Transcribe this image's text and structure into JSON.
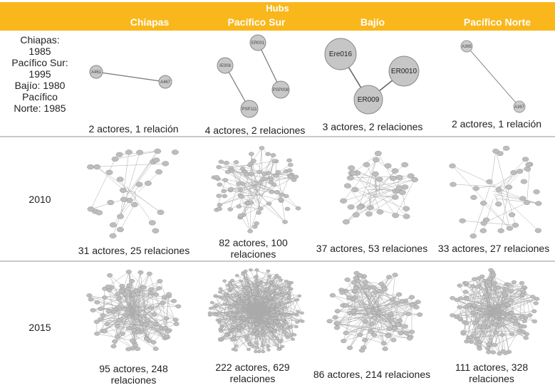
{
  "header": {
    "super_title": "Hubs",
    "columns": [
      "Chiapas",
      "Pacífico Sur",
      "Bajío",
      "Pacífico Norte"
    ]
  },
  "rows": [
    {
      "label": "Chiapas: 1985 Pacífico Sur: 1995 Bajío: 1980 Pacífico Norte: 1985",
      "label_lines": [
        "Chiapas:",
        "1985",
        "Pacífico Sur:",
        "1995",
        "Bajío: 1980",
        "Pacífico",
        "Norte: 1985"
      ],
      "captions": [
        "2 actores, 1 relación",
        "4 actores, 2 relaciones",
        "3 actores, 2 relaciones",
        "2 actores, 1 relación"
      ]
    },
    {
      "label": "2010",
      "captions": [
        "31 actores, 25 relaciones",
        "82 actores, 100 relaciones",
        "37 actores, 53 relaciones",
        "33 actores, 27 relaciones"
      ]
    },
    {
      "label": "2015",
      "captions": [
        "95 actores, 248 relaciones",
        "222 actores, 629 relaciones",
        "86 actores, 214 relaciones",
        "111 actores, 328 relaciones"
      ]
    }
  ],
  "networks": {
    "chiapas_1985": {
      "nodes": [
        "A461",
        "A467"
      ]
    },
    "pacifico_sur_1995": {
      "nodes": [
        "ER001",
        "IE008",
        "PSP008",
        "PSP111"
      ]
    },
    "bajio_1980": {
      "nodes": [
        "Ere016",
        "ER0010",
        "ER009"
      ]
    },
    "pacifico_norte_1985": {
      "nodes": [
        "A365",
        "A367"
      ]
    }
  }
}
